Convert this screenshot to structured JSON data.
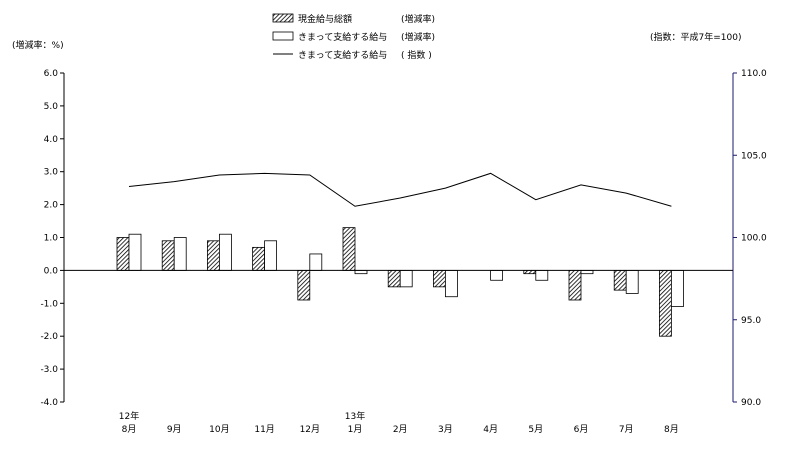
{
  "chart_data": {
    "type": "bar",
    "left_axis_label": "(増減率：%)",
    "right_axis_label": "(指数：平成7年=100)",
    "legend": [
      {
        "label": "現金給与総額",
        "suffix": "(増減率)",
        "swatch": "hatched"
      },
      {
        "label": "きまって支給する給与",
        "suffix": "(増減率)",
        "swatch": "white"
      },
      {
        "label": "きまって支給する給与",
        "suffix": "( 指数 )",
        "swatch": "line"
      }
    ],
    "categories": [
      "8月",
      "9月",
      "10月",
      "11月",
      "12月",
      "1月",
      "2月",
      "3月",
      "4月",
      "5月",
      "6月",
      "7月",
      "8月"
    ],
    "year_labels": [
      {
        "index": 0,
        "text": "12年"
      },
      {
        "index": 5,
        "text": "13年"
      }
    ],
    "left_axis": {
      "min": -4.0,
      "max": 6.0,
      "ticks": [
        "6.0",
        "5.0",
        "4.0",
        "3.0",
        "2.0",
        "1.0",
        "0.0",
        "-1.0",
        "-2.0",
        "-3.0",
        "-4.0"
      ]
    },
    "right_axis": {
      "min": 90.0,
      "max": 110.0,
      "ticks": [
        "110.0",
        "105.0",
        "100.0",
        "95.0",
        "90.0"
      ]
    },
    "series": [
      {
        "name": "現金給与総額(増減率)",
        "kind": "bar",
        "style": "hatched",
        "values": [
          1.0,
          0.9,
          0.9,
          0.7,
          -0.9,
          1.3,
          -0.5,
          -0.5,
          0.0,
          -0.1,
          -0.9,
          -0.6,
          -2.0
        ]
      },
      {
        "name": "きまって支給する給与(増減率)",
        "kind": "bar",
        "style": "white",
        "values": [
          1.1,
          1.0,
          1.1,
          0.9,
          0.5,
          -0.1,
          -0.5,
          -0.8,
          -0.3,
          -0.3,
          -0.1,
          -0.7,
          -1.1
        ]
      },
      {
        "name": "きまって支給する給与(指数)",
        "kind": "line",
        "axis": "right",
        "values": [
          103.1,
          103.4,
          103.8,
          103.9,
          103.8,
          101.9,
          102.4,
          103.0,
          103.9,
          102.3,
          103.2,
          102.7,
          101.9
        ]
      }
    ],
    "colors": {
      "bar_outline": "#000000",
      "index_line": "#000000",
      "right_axis": "#1a1a6e",
      "frame": "#000000"
    }
  }
}
